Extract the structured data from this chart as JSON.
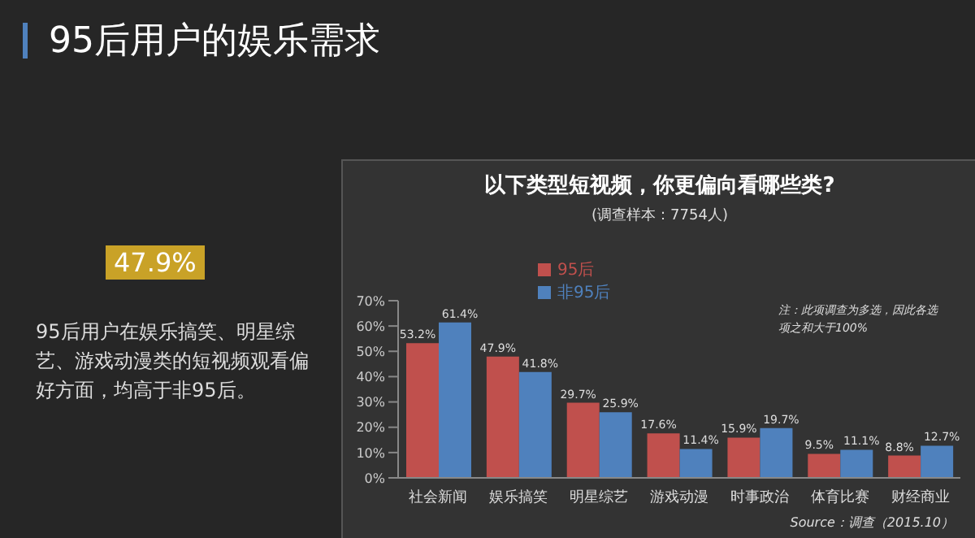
{
  "chart_data": {
    "type": "bar",
    "title": "95后用户的娱乐需求",
    "subtitle": "以下类型短视频，你更偏向看哪些类?",
    "categories": [
      "社会新闻",
      "娱乐搞笑",
      "明星综艺",
      "游戏动漫",
      "时事政治",
      "体育比赛",
      "财经商业"
    ],
    "series": [
      {
        "name": "95后",
        "color": "#c0504d",
        "values": [
          53.2,
          47.9,
          29.7,
          17.6,
          15.9,
          9.5,
          8.8
        ],
        "value_labels": [
          "53.2%",
          "47.9%",
          "29.7%",
          "17.6%",
          "15.9%",
          "9.5%",
          "8.8%"
        ]
      },
      {
        "name": "非95后",
        "color": "#4f81bd",
        "values": [
          61.4,
          41.8,
          25.9,
          11.4,
          19.7,
          11.1,
          12.7
        ],
        "value_labels": [
          "61.4%",
          "41.8%",
          "25.9%",
          "11.4%",
          "19.7%",
          "11.1%",
          "12.7%"
        ]
      }
    ],
    "ylim": [
      0,
      70
    ],
    "yticks": [
      {
        "value": 0,
        "label": "0%"
      },
      {
        "value": 10,
        "label": "10%"
      },
      {
        "value": 20,
        "label": "20%"
      },
      {
        "value": 30,
        "label": "30%"
      },
      {
        "value": 40,
        "label": "40%"
      },
      {
        "value": 50,
        "label": "50%"
      },
      {
        "value": 60,
        "label": "60%"
      },
      {
        "value": 70,
        "label": "70%"
      }
    ],
    "legend": "top",
    "annotations": [
      "(调查样本：7754人)",
      "47.9%",
      "95后用户在娱乐搞笑、明星综艺、游戏动漫类的短视频观看偏好方面，均高于非95后。",
      "注：此项调查为多选，因此各选项之和大于100%",
      "Source：调查（2015.10）"
    ]
  }
}
